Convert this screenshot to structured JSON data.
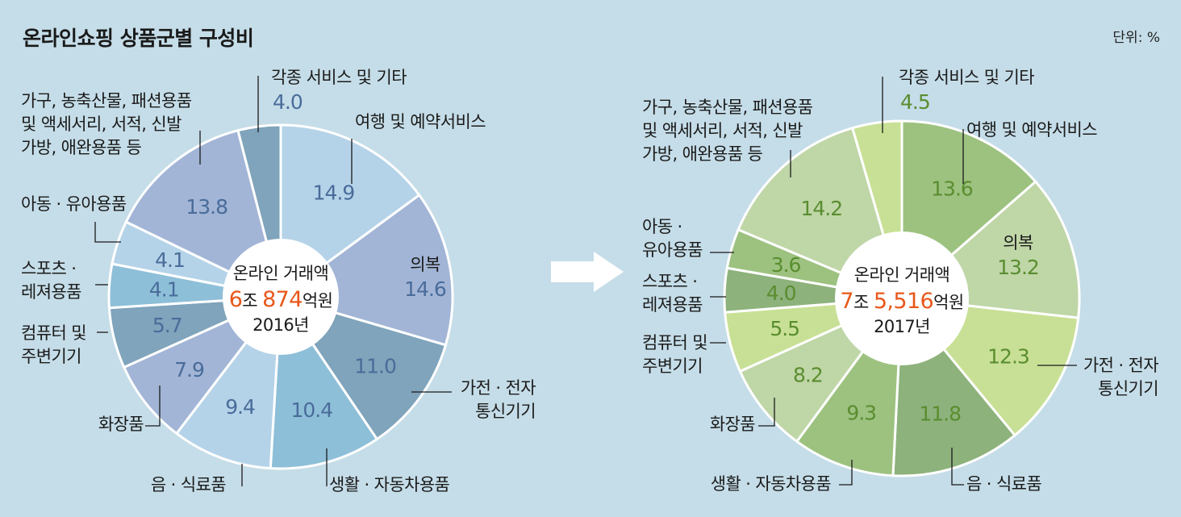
{
  "title": "온라인쇼핑 상품군별 구성비",
  "unit": "단위: %",
  "colors": {
    "value_2016": "#4a6c9a",
    "value_2017": "#5a8d2f",
    "center_text": "#222222",
    "center_year": "#555555",
    "highlight": "#e8581b",
    "arrow": "#ffffff",
    "background": "#c5dde8"
  },
  "chart_data": [
    {
      "type": "pie",
      "year": "2016년",
      "center": {
        "label": "온라인 거래액",
        "num1": "6",
        "unit1": "조 ",
        "num2": "874",
        "unit2": "억원",
        "year": "2016년"
      },
      "slices": [
        {
          "label": [
            "여행 및 예약서비스"
          ],
          "value": 14.9,
          "value_text": "14.9",
          "color": "#b5d3e8"
        },
        {
          "label": [
            "의복"
          ],
          "value": 14.6,
          "value_text": "14.6",
          "color": "#a2b5d6"
        },
        {
          "label": [
            "가전 · 전자",
            "통신기기"
          ],
          "value": 11.0,
          "value_text": "11.0",
          "color": "#7fa4bb"
        },
        {
          "label": [
            "생활 · 자동차용품"
          ],
          "value": 10.4,
          "value_text": "10.4",
          "color": "#8ebfd8"
        },
        {
          "label": [
            "음 · 식료품"
          ],
          "value": 9.4,
          "value_text": "9.4",
          "color": "#b5d3e8"
        },
        {
          "label": [
            "화장품"
          ],
          "value": 7.9,
          "value_text": "7.9",
          "color": "#a2b5d6"
        },
        {
          "label": [
            "컴퓨터 및",
            "주변기기"
          ],
          "value": 5.7,
          "value_text": "5.7",
          "color": "#7fa4bb"
        },
        {
          "label": [
            "스포츠 ·",
            "레져용품"
          ],
          "value": 4.1,
          "value_text": "4.1",
          "color": "#8ebfd8"
        },
        {
          "label": [
            "아동 · 유아용품"
          ],
          "value": 4.1,
          "value_text": "4.1",
          "color": "#b5d3e8"
        },
        {
          "label": [
            "가구, 농축산물, 패션용품",
            "및 액세서리, 서적, 신발",
            "가방, 애완용품 등"
          ],
          "value": 13.8,
          "value_text": "13.8",
          "color": "#a2b5d6"
        },
        {
          "label": [
            "각종 서비스 및 기타"
          ],
          "value": 4.0,
          "value_text": "4.0",
          "color": "#7fa4bb"
        }
      ]
    },
    {
      "type": "pie",
      "year": "2017년",
      "center": {
        "label": "온라인 거래액",
        "num1": "7",
        "unit1": "조 ",
        "num2": "5,516",
        "unit2": "억원",
        "year": "2017년"
      },
      "slices": [
        {
          "label": [
            "여행 및 예약서비스"
          ],
          "value": 13.6,
          "value_text": "13.6",
          "color": "#9dc280"
        },
        {
          "label": [
            "의복"
          ],
          "value": 13.2,
          "value_text": "13.2",
          "color": "#bfd6a7"
        },
        {
          "label": [
            "가전 · 전자",
            "통신기기"
          ],
          "value": 12.3,
          "value_text": "12.3",
          "color": "#c8e095"
        },
        {
          "label": [
            "음 · 식료품"
          ],
          "value": 11.8,
          "value_text": "11.8",
          "color": "#8db27c"
        },
        {
          "label": [
            "생활 · 자동차용품"
          ],
          "value": 9.3,
          "value_text": "9.3",
          "color": "#9dc280"
        },
        {
          "label": [
            "화장품"
          ],
          "value": 8.2,
          "value_text": "8.2",
          "color": "#bfd6a7"
        },
        {
          "label": [
            "컴퓨터 및",
            "주변기기"
          ],
          "value": 5.5,
          "value_text": "5.5",
          "color": "#c8e095"
        },
        {
          "label": [
            "스포츠 ·",
            "레져용품"
          ],
          "value": 4.0,
          "value_text": "4.0",
          "color": "#8db27c"
        },
        {
          "label": [
            "아동 ·",
            "유아용품"
          ],
          "value": 3.6,
          "value_text": "3.6",
          "color": "#9dc280"
        },
        {
          "label": [
            "가구, 농축산물, 패션용품",
            "및 액세서리, 서적, 신발",
            "가방, 애완용품 등"
          ],
          "value": 14.2,
          "value_text": "14.2",
          "color": "#bfd6a7"
        },
        {
          "label": [
            "각종 서비스 및 기타"
          ],
          "value": 4.5,
          "value_text": "4.5",
          "color": "#c8e095"
        }
      ]
    }
  ]
}
